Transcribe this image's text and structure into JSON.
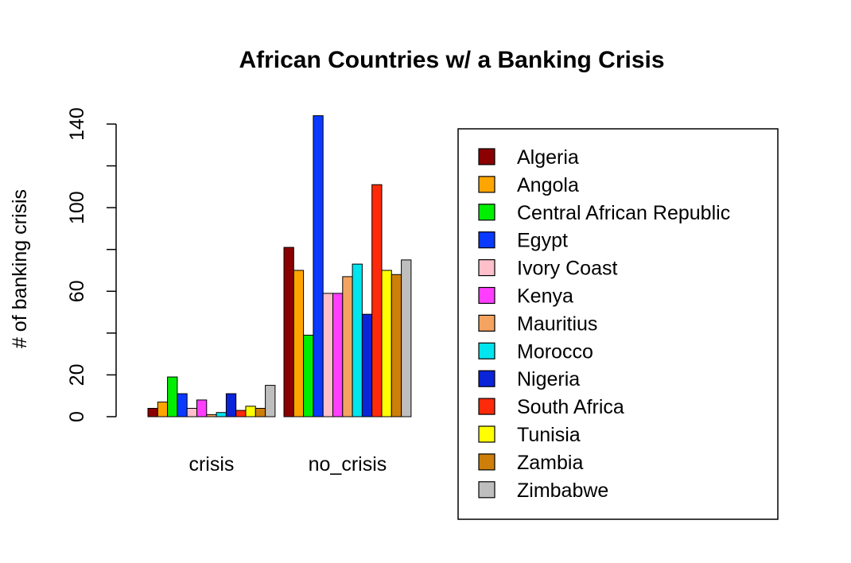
{
  "chart_data": {
    "type": "bar",
    "title": "African Countries w/ a Banking Crisis",
    "xlabel": "",
    "ylabel": "# of banking crisis",
    "categories": [
      "crisis",
      "no_crisis"
    ],
    "yticks": [
      0,
      20,
      60,
      100,
      140
    ],
    "yminor": [
      40,
      80,
      120
    ],
    "ylim": [
      0,
      140
    ],
    "grid": false,
    "legend_position": "right",
    "series": [
      {
        "name": "Algeria",
        "color": "#8B0000",
        "values": [
          4,
          81
        ]
      },
      {
        "name": "Angola",
        "color": "#FFA500",
        "values": [
          7,
          70
        ]
      },
      {
        "name": "Central African Republic",
        "color": "#00EE00",
        "values": [
          19,
          39
        ]
      },
      {
        "name": "Egypt",
        "color": "#0A3AFF",
        "values": [
          11,
          144
        ]
      },
      {
        "name": "Ivory Coast",
        "color": "#FFC0CB",
        "values": [
          4,
          59
        ]
      },
      {
        "name": "Kenya",
        "color": "#FF3EFF",
        "values": [
          8,
          59
        ]
      },
      {
        "name": "Mauritius",
        "color": "#F4A460",
        "values": [
          1,
          67
        ]
      },
      {
        "name": "Morocco",
        "color": "#00E5EE",
        "values": [
          2,
          73
        ]
      },
      {
        "name": "Nigeria",
        "color": "#0A24D8",
        "values": [
          11,
          49
        ]
      },
      {
        "name": "South Africa",
        "color": "#FF2A0A",
        "values": [
          3,
          111
        ]
      },
      {
        "name": "Tunisia",
        "color": "#FFFF00",
        "values": [
          5,
          70
        ]
      },
      {
        "name": "Zambia",
        "color": "#CD7F0A",
        "values": [
          4,
          68
        ]
      },
      {
        "name": "Zimbabwe",
        "color": "#BEBEBE",
        "values": [
          15,
          75
        ]
      }
    ]
  }
}
